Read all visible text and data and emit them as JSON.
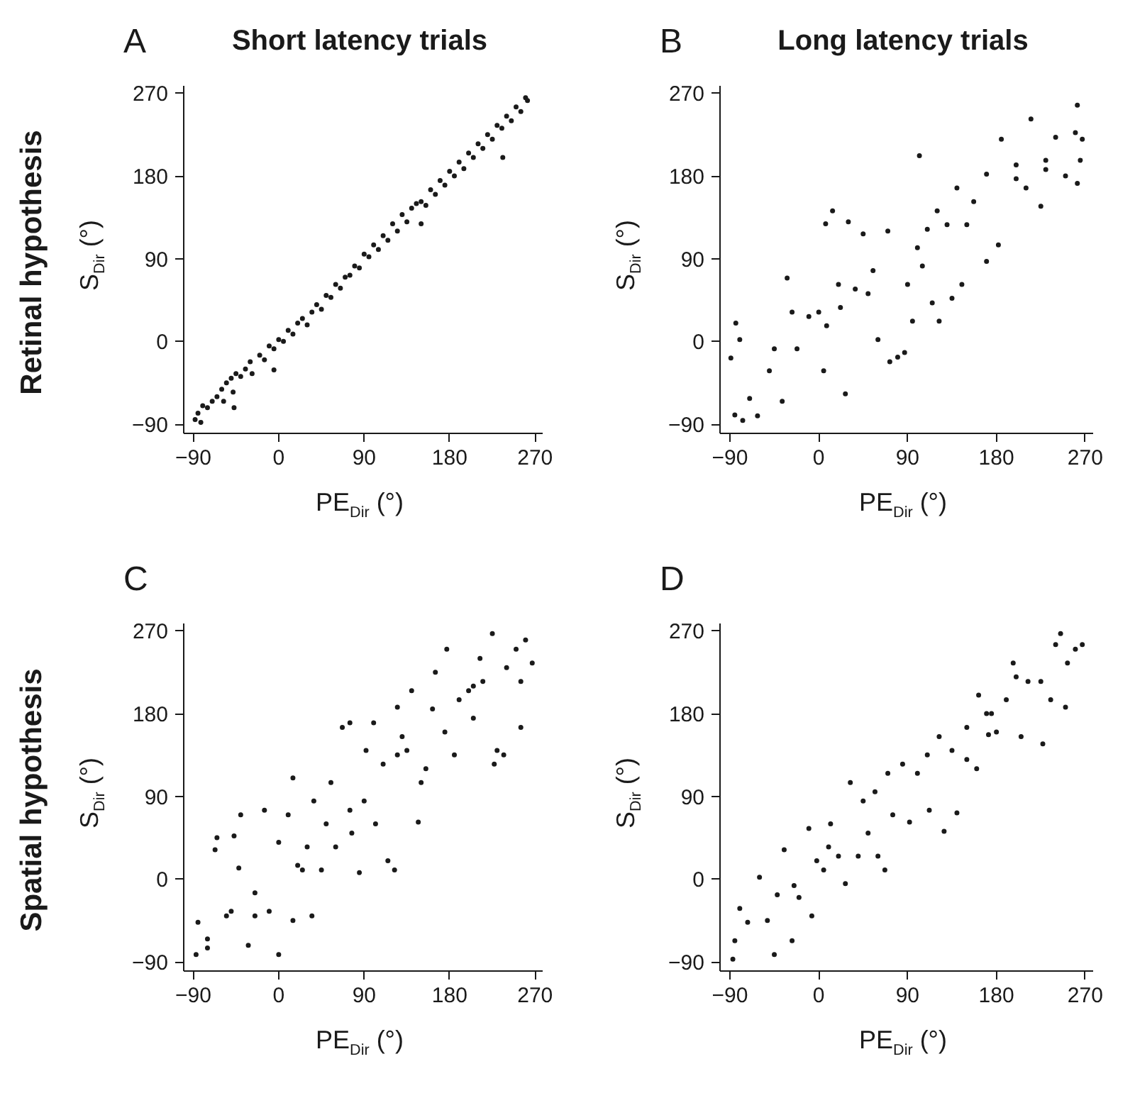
{
  "chart_data": [
    {
      "type": "scatter",
      "title": "Short latency trials",
      "annotations": [
        "A",
        "Retinal hypothesis"
      ],
      "xlabel": "PE$_{Dir}$ (°)",
      "ylabel": "S$_{Dir}$ (°)",
      "xlim": [
        -100,
        278
      ],
      "ylim": [
        -100,
        278
      ],
      "xticks": [
        -90,
        0,
        90,
        180,
        270
      ],
      "yticks": [
        -90,
        0,
        90,
        180,
        270
      ],
      "grid": false,
      "marker": "circle",
      "color": "#1a1a1a",
      "x": [
        -88,
        -85,
        -82,
        -80,
        -75,
        -70,
        -65,
        -60,
        -58,
        -55,
        -50,
        -48,
        -47,
        -45,
        -40,
        -35,
        -30,
        -28,
        -20,
        -15,
        -10,
        -5,
        -5,
        0,
        5,
        10,
        15,
        20,
        25,
        30,
        35,
        40,
        45,
        50,
        55,
        60,
        65,
        70,
        75,
        80,
        85,
        90,
        95,
        100,
        105,
        110,
        115,
        120,
        125,
        130,
        135,
        140,
        145,
        150,
        150,
        155,
        160,
        165,
        170,
        175,
        180,
        185,
        190,
        195,
        200,
        205,
        210,
        215,
        220,
        225,
        230,
        235,
        236,
        240,
        245,
        250,
        255,
        260,
        262
      ],
      "values": [
        -85,
        -78,
        -88,
        -70,
        -72,
        -65,
        -60,
        -52,
        -65,
        -45,
        -40,
        -55,
        -72,
        -35,
        -38,
        -30,
        -22,
        -35,
        -15,
        -20,
        -5,
        -8,
        -31,
        2,
        0,
        12,
        8,
        20,
        25,
        18,
        32,
        40,
        35,
        50,
        48,
        62,
        58,
        70,
        72,
        82,
        80,
        95,
        92,
        105,
        100,
        115,
        110,
        128,
        120,
        138,
        130,
        145,
        150,
        152,
        128,
        148,
        165,
        160,
        175,
        170,
        185,
        180,
        195,
        188,
        205,
        200,
        215,
        210,
        225,
        220,
        235,
        232,
        200,
        245,
        240,
        255,
        250,
        265,
        262
      ]
    },
    {
      "type": "scatter",
      "title": "Long latency trials",
      "annotations": [
        "B"
      ],
      "xlabel": "PE$_{Dir}$ (°)",
      "ylabel": "S$_{Dir}$ (°)",
      "xlim": [
        -100,
        278
      ],
      "ylim": [
        -100,
        278
      ],
      "xticks": [
        -90,
        0,
        90,
        180,
        270
      ],
      "yticks": [
        -90,
        0,
        90,
        180,
        270
      ],
      "grid": false,
      "marker": "circle",
      "color": "#1a1a1a",
      "x": [
        -85,
        -77,
        -84,
        -80,
        -89,
        -70,
        -62,
        -50,
        -45,
        -32,
        -27,
        -37,
        -22,
        -10,
        0,
        8,
        5,
        7,
        14,
        20,
        22,
        27,
        30,
        37,
        45,
        50,
        55,
        60,
        70,
        72,
        80,
        87,
        90,
        95,
        100,
        102,
        105,
        110,
        115,
        122,
        120,
        130,
        135,
        140,
        145,
        150,
        157,
        170,
        170,
        182,
        185,
        200,
        210,
        215,
        225,
        230,
        240,
        250,
        262,
        265,
        262,
        260,
        267,
        230,
        200
      ],
      "values": [
        -80,
        -86,
        20,
        2,
        -18,
        -62,
        -81,
        -32,
        -8,
        69,
        32,
        -65,
        -8,
        27,
        32,
        17,
        -32,
        128,
        142,
        62,
        37,
        -57,
        130,
        57,
        117,
        52,
        77,
        2,
        120,
        -22,
        -17,
        -12,
        62,
        22,
        102,
        202,
        82,
        122,
        42,
        22,
        142,
        127,
        47,
        167,
        62,
        127,
        152,
        87,
        182,
        105,
        220,
        177,
        167,
        242,
        147,
        187,
        222,
        180,
        172,
        197,
        257,
        227,
        220,
        197,
        192
      ]
    },
    {
      "type": "scatter",
      "annotations": [
        "C",
        "Spatial hypothesis"
      ],
      "xlabel": "PE$_{Dir}$ (°)",
      "ylabel": "S$_{Dir}$ (°)",
      "xlim": [
        -100,
        278
      ],
      "ylim": [
        -100,
        278
      ],
      "xticks": [
        -90,
        0,
        90,
        180,
        270
      ],
      "yticks": [
        -90,
        0,
        90,
        180,
        270
      ],
      "grid": false,
      "marker": "circle",
      "color": "#1a1a1a",
      "x": [
        -87,
        -85,
        -75,
        -67,
        -65,
        -55,
        -47,
        -42,
        -40,
        -32,
        -25,
        -15,
        -10,
        0,
        0,
        10,
        15,
        15,
        20,
        30,
        35,
        37,
        45,
        50,
        55,
        60,
        67,
        75,
        77,
        85,
        90,
        92,
        100,
        102,
        110,
        115,
        122,
        125,
        130,
        135,
        140,
        147,
        150,
        155,
        162,
        165,
        175,
        177,
        185,
        190,
        200,
        205,
        212,
        215,
        225,
        227,
        230,
        237,
        240,
        250,
        255,
        260,
        267,
        255,
        205,
        125,
        75,
        25,
        -25,
        -50,
        -75
      ],
      "values": [
        -82,
        -47,
        -65,
        32,
        45,
        -40,
        47,
        12,
        70,
        -72,
        -15,
        75,
        -35,
        -82,
        40,
        70,
        110,
        -45,
        15,
        35,
        -40,
        85,
        10,
        60,
        105,
        35,
        165,
        170,
        50,
        7,
        85,
        140,
        170,
        60,
        125,
        20,
        10,
        187,
        155,
        140,
        205,
        62,
        105,
        120,
        185,
        225,
        160,
        250,
        135,
        195,
        205,
        175,
        240,
        215,
        267,
        125,
        140,
        135,
        230,
        250,
        165,
        260,
        235,
        215,
        210,
        135,
        75,
        10,
        -40,
        -35,
        -75
      ]
    },
    {
      "type": "scatter",
      "annotations": [
        "D"
      ],
      "xlabel": "PE$_{Dir}$ (°)",
      "ylabel": "S$_{Dir}$ (°)",
      "xlim": [
        -100,
        278
      ],
      "ylim": [
        -100,
        278
      ],
      "xticks": [
        -90,
        0,
        90,
        180,
        270
      ],
      "yticks": [
        -90,
        0,
        90,
        180,
        270
      ],
      "grid": false,
      "marker": "circle",
      "color": "#1a1a1a",
      "x": [
        -87,
        -85,
        -80,
        -72,
        -60,
        -52,
        -45,
        -42,
        -35,
        -27,
        -25,
        -20,
        -10,
        -7,
        -2,
        5,
        10,
        12,
        20,
        27,
        32,
        40,
        45,
        50,
        57,
        60,
        67,
        70,
        75,
        85,
        92,
        100,
        110,
        112,
        122,
        127,
        135,
        140,
        150,
        150,
        160,
        162,
        172,
        175,
        180,
        190,
        197,
        205,
        212,
        225,
        227,
        235,
        240,
        250,
        252,
        260,
        267,
        245,
        200,
        170
      ],
      "values": [
        -87,
        -67,
        -32,
        -47,
        2,
        -45,
        -82,
        -17,
        32,
        -67,
        -7,
        -20,
        55,
        -40,
        20,
        10,
        35,
        60,
        25,
        -5,
        105,
        25,
        85,
        50,
        95,
        25,
        10,
        115,
        70,
        125,
        62,
        115,
        135,
        75,
        155,
        52,
        140,
        72,
        130,
        165,
        120,
        200,
        157,
        180,
        160,
        195,
        235,
        155,
        215,
        215,
        147,
        195,
        255,
        187,
        235,
        250,
        255,
        267,
        220,
        180
      ]
    }
  ]
}
